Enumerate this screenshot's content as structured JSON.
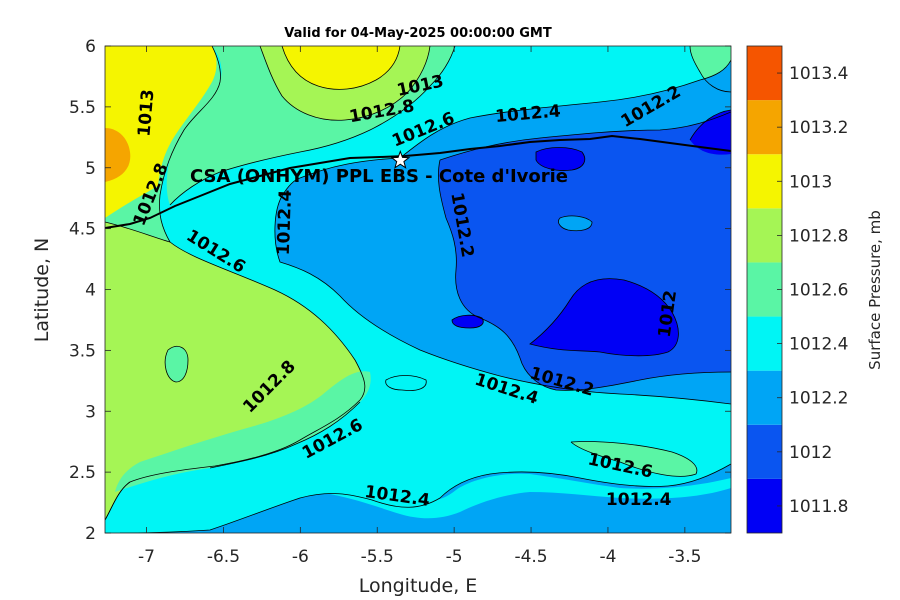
{
  "title": "Valid for 04-May-2025 00:00:00 GMT",
  "xlabel": "Longitude, E",
  "ylabel": "Latitude, N",
  "x_ticks": [
    "-7",
    "-6.5",
    "-6",
    "-5.5",
    "-5",
    "-4.5",
    "-4",
    "-3.5"
  ],
  "y_ticks": [
    "2",
    "2.5",
    "3",
    "3.5",
    "4",
    "4.5",
    "5",
    "5.5",
    "6"
  ],
  "site_label": "CSA (ONHYM) PPL EBS  - Cote d'Ivorie",
  "colorbar": {
    "label": "Surface Pressure, mb",
    "ticks": [
      "1011.8",
      "1012",
      "1012.2",
      "1012.4",
      "1012.6",
      "1012.8",
      "1013",
      "1013.2",
      "1013.4"
    ],
    "colors": [
      "#0000f5",
      "#0a55f0",
      "#00a5f5",
      "#00f5f5",
      "#5af5a5",
      "#a5f555",
      "#f5f500",
      "#f5a500",
      "#f55500"
    ]
  },
  "contour_labels": [
    {
      "text": "1013",
      "lon": -5.22,
      "lat": 5.67,
      "rot": -12
    },
    {
      "text": "1012.8",
      "lon": -5.47,
      "lat": 5.46,
      "rot": -10
    },
    {
      "text": "1012.6",
      "lon": -5.2,
      "lat": 5.31,
      "rot": -22
    },
    {
      "text": "1012.4",
      "lon": -4.52,
      "lat": 5.44,
      "rot": -5
    },
    {
      "text": "1012.2",
      "lon": -3.72,
      "lat": 5.5,
      "rot": -30
    },
    {
      "text": "1013",
      "lon": -7.0,
      "lat": 5.45,
      "rot": -85
    },
    {
      "text": "1012.8",
      "lon": -6.97,
      "lat": 4.78,
      "rot": -68
    },
    {
      "text": "1012.6",
      "lon": -6.55,
      "lat": 4.31,
      "rot": 32
    },
    {
      "text": "1012.4",
      "lon": -6.1,
      "lat": 4.55,
      "rot": -88
    },
    {
      "text": "1012.2",
      "lon": -4.95,
      "lat": 4.53,
      "rot": 80
    },
    {
      "text": "1012",
      "lon": -3.61,
      "lat": 3.8,
      "rot": -82
    },
    {
      "text": "1012.8",
      "lon": -6.2,
      "lat": 3.2,
      "rot": -45
    },
    {
      "text": "1012.6",
      "lon": -5.79,
      "lat": 2.77,
      "rot": -28
    },
    {
      "text": "1012.4",
      "lon": -4.66,
      "lat": 3.18,
      "rot": 18
    },
    {
      "text": "1012.2",
      "lon": -4.3,
      "lat": 3.24,
      "rot": 16
    },
    {
      "text": "1012.6",
      "lon": -3.92,
      "lat": 2.55,
      "rot": 12
    },
    {
      "text": "1012.4",
      "lon": -3.8,
      "lat": 2.27,
      "rot": 0
    },
    {
      "text": "1012.4",
      "lon": -5.37,
      "lat": 2.3,
      "rot": 8
    }
  ],
  "site": {
    "lon": -5.35,
    "lat": 5.06
  }
}
